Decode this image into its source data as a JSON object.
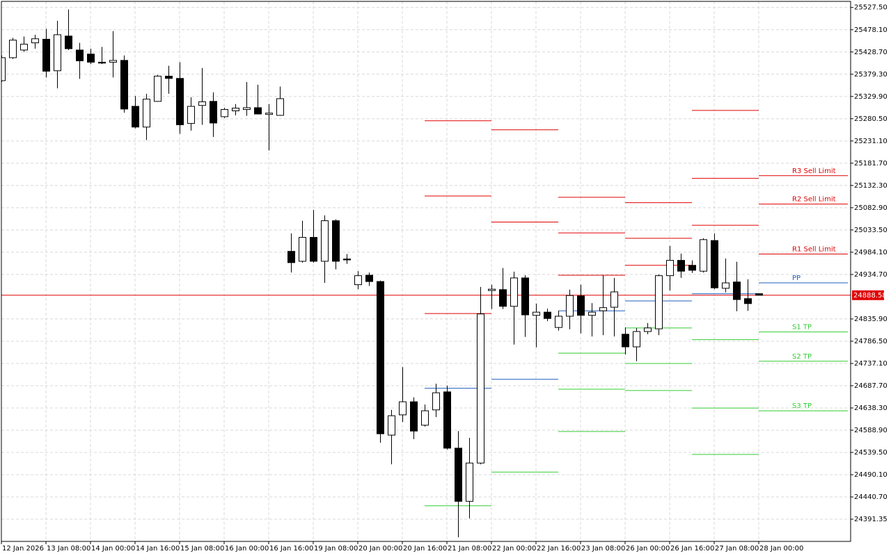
{
  "chart_data": {
    "type": "candlestick",
    "categories": [
      "12 Jan 2026",
      null,
      null,
      null,
      "13 Jan 08:00",
      null,
      null,
      null,
      "14 Jan 00:00",
      null,
      null,
      null,
      "14 Jan 16:00",
      null,
      null,
      null,
      "15 Jan 08:00",
      null,
      null,
      null,
      "16 Jan 00:00",
      null,
      null,
      null,
      "16 Jan 16:00",
      null,
      null,
      null,
      "19 Jan 08:00",
      null,
      null,
      null,
      "20 Jan 00:00",
      null,
      null,
      null,
      "20 Jan 16:00",
      null,
      null,
      null,
      "21 Jan 08:00",
      null,
      null,
      null,
      "22 Jan 00:00",
      null,
      null,
      null,
      "22 Jan 16:00",
      null,
      null,
      null,
      "23 Jan 08:00",
      null,
      null,
      null,
      "26 Jan 00:00",
      null,
      null,
      null,
      "26 Jan 16:00",
      null,
      null,
      null,
      "27 Jan 08:00",
      null,
      null,
      null,
      "28 Jan 00:00"
    ],
    "open": [
      25365,
      25416,
      25433,
      25449,
      25457,
      25387,
      25464,
      25433,
      25424,
      25406,
      25406,
      25410,
      25308,
      25262,
      25319,
      25375,
      25370,
      25270,
      25310,
      25319,
      25285,
      25298,
      25301,
      25305,
      25290,
      25288,
      24986,
      24964,
      25017,
      24964,
      25054,
      24969,
      24912,
      24933,
      24919,
      24578,
      24623,
      24652,
      24600,
      24634,
      24674,
      24549,
      24431,
      24516,
      24899,
      24901,
      24864,
      24927,
      24844,
      24851,
      24817,
      24842,
      24887,
      24844,
      24854,
      24862,
      24802,
      24774,
      24808,
      24814,
      24932,
      24966,
      24955,
      24942,
      25010,
      24904,
      24918,
      24881,
      24892
    ],
    "high": [
      25421,
      25460,
      25463,
      25467,
      25480,
      25498,
      25523,
      25449,
      25436,
      25440,
      25475,
      25421,
      25331,
      25336,
      25378,
      25398,
      25406,
      25328,
      25393,
      25339,
      25305,
      25313,
      25362,
      25356,
      25313,
      25352,
      25026,
      25054,
      25078,
      25066,
      25057,
      24980,
      24942,
      24939,
      24921,
      24634,
      24729,
      24662,
      24646,
      24692,
      24688,
      24587,
      24572,
      24907,
      24912,
      24949,
      24941,
      24933,
      24870,
      24859,
      24854,
      24901,
      24912,
      24871,
      24933,
      24927,
      24817,
      24816,
      24827,
      24935,
      24998,
      24981,
      24966,
      25015,
      25026,
      24970,
      24963,
      24924,
      24893
    ],
    "low": [
      25362,
      25413,
      25429,
      25436,
      25372,
      25348,
      25433,
      25369,
      25402,
      25402,
      25372,
      25294,
      25259,
      25233,
      25318,
      25336,
      25247,
      25254,
      25267,
      25240,
      25282,
      25288,
      25287,
      25290,
      25210,
      25287,
      24939,
      24961,
      24961,
      24916,
      24946,
      24958,
      24902,
      24909,
      24561,
      24513,
      24607,
      24569,
      24597,
      24618,
      24546,
      24351,
      24393,
      24513,
      24858,
      24858,
      24779,
      24796,
      24773,
      24831,
      24810,
      24813,
      24804,
      24797,
      24800,
      24797,
      24757,
      24742,
      24802,
      24800,
      24899,
      24927,
      24938,
      24939,
      24902,
      24895,
      24853,
      24854,
      24888.58
    ],
    "close": [
      25416,
      25455,
      25446,
      25458,
      25386,
      25467,
      25436,
      25409,
      25406,
      25404,
      25410,
      25302,
      25262,
      25324,
      25375,
      25370,
      25267,
      25308,
      25318,
      25271,
      25301,
      25304,
      25305,
      25291,
      25293,
      25325,
      24961,
      25017,
      24964,
      25054,
      24964,
      24967,
      24932,
      24919,
      24581,
      24621,
      24652,
      24587,
      24632,
      24672,
      24549,
      24431,
      24516,
      24847,
      24902,
      24864,
      24927,
      24845,
      24851,
      24837,
      24842,
      24888,
      24844,
      24851,
      24861,
      24896,
      24774,
      24808,
      24816,
      24932,
      24966,
      24942,
      24944,
      25012,
      24905,
      24916,
      24879,
      24870,
      24888.58
    ],
    "up_color": "#ffffff",
    "down_color": "#000000",
    "current_price": 24888.58,
    "current_price_color": "#e00000",
    "levels": [
      {
        "resistance": [
          25276,
          25109,
          24848
        ],
        "pivot": 24682,
        "support": [
          24421
        ]
      },
      {
        "resistance": [
          25256,
          25051
        ],
        "pivot": 24702,
        "support": [
          24496
        ]
      },
      {
        "resistance": [
          25106,
          25027,
          24933
        ],
        "pivot": 24854,
        "support": [
          24760,
          24680,
          24586
        ]
      },
      {
        "resistance": [
          25094,
          25015,
          24955
        ],
        "pivot": 24876,
        "support": [
          24816,
          24737,
          24677
        ]
      },
      {
        "resistance": [
          25299,
          25148,
          25044
        ],
        "pivot": 24892,
        "support": [
          24790,
          24638,
          24535
        ]
      },
      {
        "resistance": [
          25154,
          25091,
          24980
        ],
        "pivot": 24916,
        "support": [
          24807,
          24742,
          24632
        ]
      }
    ],
    "resistance_labels": [
      "R3 Sell Limit",
      "R2 Sell Limit",
      "R1 Sell Limit"
    ],
    "pivot_label": "PP",
    "support_labels": [
      "S1 TP",
      "S2 TP",
      "S3 TP"
    ],
    "resistance_color": "#e00000",
    "pivot_color": "#1f5fbf",
    "support_color": "#33cc33",
    "ylim": [
      24342,
      25541
    ],
    "yticks": [
      {
        "value": 25527.5,
        "label": "25527.50"
      },
      {
        "value": 25478.1,
        "label": "25478.10"
      },
      {
        "value": 25428.7,
        "label": "25428.70"
      },
      {
        "value": 25379.3,
        "label": "25379.30"
      },
      {
        "value": 25329.9,
        "label": "25329.90"
      },
      {
        "value": 25280.5,
        "label": "25280.50"
      },
      {
        "value": 25231.1,
        "label": "25231.10"
      },
      {
        "value": 25181.7,
        "label": "25181.70"
      },
      {
        "value": 25132.3,
        "label": "25132.30"
      },
      {
        "value": 25082.9,
        "label": "25082.90"
      },
      {
        "value": 25033.5,
        "label": "25033.50"
      },
      {
        "value": 24984.1,
        "label": "24984.10"
      },
      {
        "value": 24934.7,
        "label": "24934.70"
      },
      {
        "value": 24835.9,
        "label": "24835.90"
      },
      {
        "value": 24786.5,
        "label": "24786.50"
      },
      {
        "value": 24737.1,
        "label": "24737.10"
      },
      {
        "value": 24687.7,
        "label": "24687.70"
      },
      {
        "value": 24638.3,
        "label": "24638.30"
      },
      {
        "value": 24588.9,
        "label": "24588.90"
      },
      {
        "value": 24539.5,
        "label": "24539.50"
      },
      {
        "value": 24490.1,
        "label": "24490.10"
      },
      {
        "value": 24440.7,
        "label": "24440.70"
      },
      24391.35
    ],
    "grid": true
  }
}
